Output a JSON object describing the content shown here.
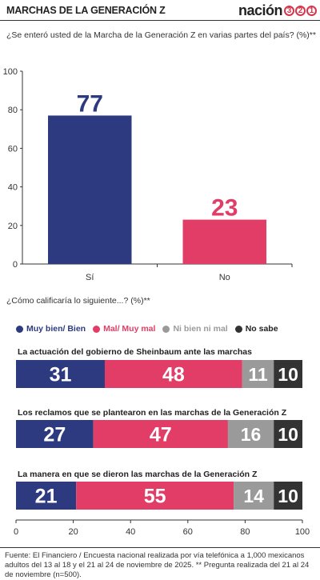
{
  "header": {
    "title": "MARCHAS DE LA GENERACIÓN Z",
    "logo_text": "nación",
    "logo_digits": [
      "3",
      "2",
      "1"
    ]
  },
  "question1": "¿Se enteró usted de la Marcha de la Generación Z en varias partes del país? (%)**",
  "question2": "¿Cómo calificaría lo siguiente...? (%)**",
  "colors": {
    "blue": "#2e3a80",
    "pink": "#e23d66",
    "gray": "#9a9a9a",
    "dark": "#333333",
    "accent": "#d6344a"
  },
  "chart_data": [
    {
      "type": "bar",
      "categories": [
        "Sí",
        "No"
      ],
      "values": [
        77,
        23
      ],
      "ylim": [
        0,
        100
      ],
      "yticks": [
        0,
        20,
        40,
        60,
        80,
        100
      ],
      "grid": false
    },
    {
      "type": "bar",
      "orientation": "horizontal",
      "stacked": true,
      "series_names": [
        "Muy bien/ Bien",
        "Mal/ Muy mal",
        "Ni bien ni mal",
        "No sabe"
      ],
      "categories": [
        "La actuación del gobierno de Sheinbaum ante las marchas",
        "Los reclamos que se plantearon en las marchas de la Generación Z",
        "La manera en que se dieron las marchas de la Generación Z"
      ],
      "series": [
        {
          "name": "Muy bien/ Bien",
          "values": [
            31,
            27,
            21
          ]
        },
        {
          "name": "Mal/ Muy mal",
          "values": [
            48,
            47,
            55
          ]
        },
        {
          "name": "Ni bien ni mal",
          "values": [
            11,
            16,
            14
          ]
        },
        {
          "name": "No sabe",
          "values": [
            10,
            10,
            10
          ]
        }
      ],
      "xlim": [
        0,
        100
      ],
      "xticks": [
        0,
        20,
        40,
        60,
        80,
        100
      ],
      "legend_position": "top"
    }
  ],
  "footer": "Fuente: El Financiero / Encuesta nacional realizada por vía telefónica a 1,000 mexicanos adultos del 13 al 18 y el 21 al 24 de noviembre de 2025. ** Pregunta realizada del 21 al 24 de noviembre (n=500)."
}
